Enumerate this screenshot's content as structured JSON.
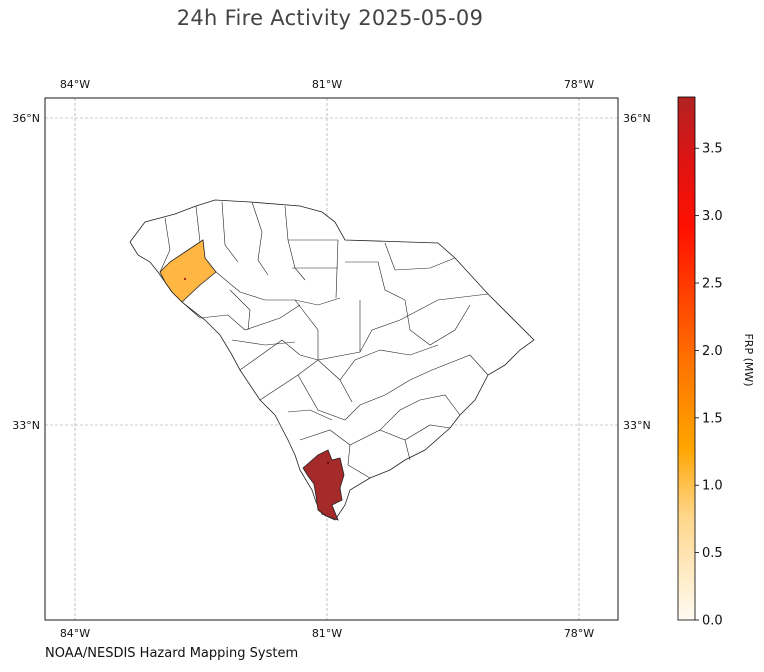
{
  "title": "24h Fire Activity 2025-05-09",
  "credit": "NOAA/NESDIS Hazard Mapping System",
  "map": {
    "lon_ticks": [
      "84°W",
      "81°W",
      "78°W"
    ],
    "lat_ticks": [
      "36°N",
      "33°N"
    ],
    "gridlines": true
  },
  "colorbar": {
    "label": "FRP (MW)",
    "ticks": [
      "0.0",
      "0.5",
      "1.0",
      "1.5",
      "2.0",
      "2.5",
      "3.0",
      "3.5"
    ],
    "range": [
      0,
      3.88
    ],
    "colors": [
      "#fffbf0",
      "#ffd27a",
      "#ffa500",
      "#ff6a00",
      "#ff2000",
      "#e01010",
      "#b22222"
    ]
  },
  "chart_data": {
    "type": "choropleth",
    "region": "South Carolina counties",
    "value_label": "FRP (MW)",
    "highlighted": [
      {
        "area": "upstate county (northwest)",
        "frp_mw": 1.0,
        "color": "#ffb642"
      },
      {
        "area": "lowcountry county (southern coast)",
        "frp_mw": 3.85,
        "color": "#a52a2a"
      }
    ]
  }
}
